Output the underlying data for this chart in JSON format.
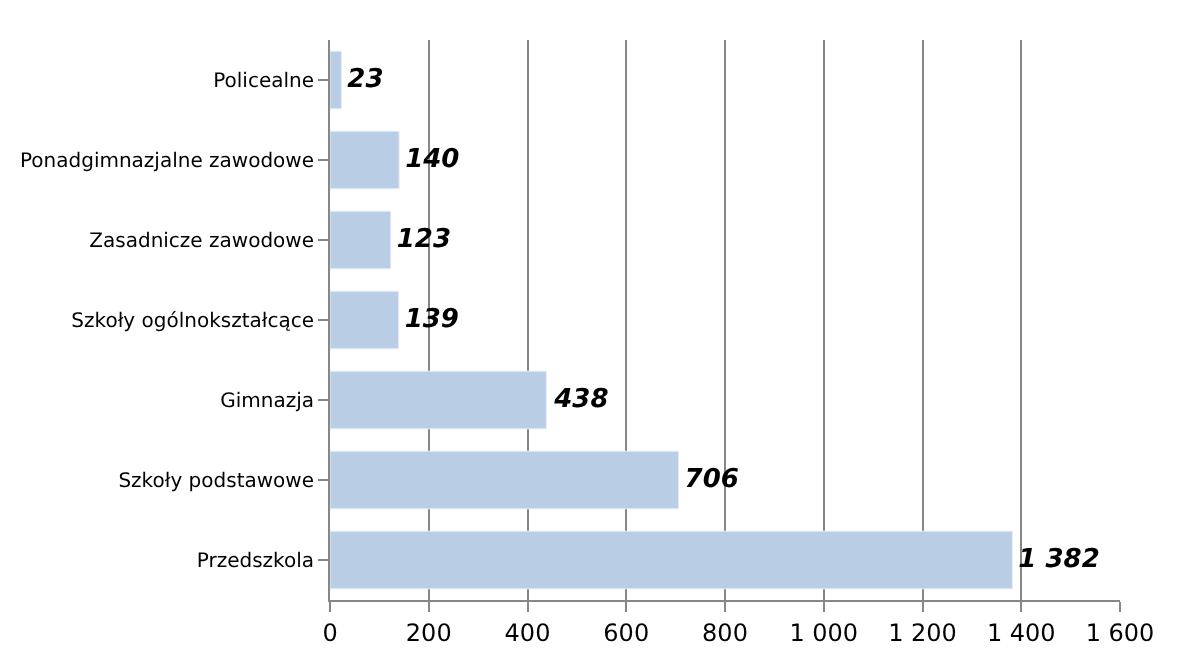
{
  "chart_data": {
    "type": "bar",
    "orientation": "horizontal",
    "categories": [
      "Policealne",
      "Ponadgimnazjalne zawodowe",
      "Zasadnicze zawodowe",
      "Szkoły ogólnokształcące",
      "Gimnazja",
      "Szkoły podstawowe",
      "Przedszkola"
    ],
    "values": [
      23,
      140,
      123,
      139,
      438,
      706,
      1382
    ],
    "value_labels": [
      "23",
      "140",
      "123",
      "139",
      "438",
      "706",
      "1 382"
    ],
    "color": "#b9cde5",
    "xlim": [
      0,
      1600
    ],
    "xticks": [
      0,
      200,
      400,
      600,
      800,
      {
        "value": 1000,
        "label": "1 000"
      },
      {
        "value": 1200,
        "label": "1 200"
      },
      {
        "value": 1400,
        "label": "1 400"
      },
      {
        "value": 1600,
        "label": "1 600"
      }
    ],
    "grid": "x",
    "legend": false
  }
}
